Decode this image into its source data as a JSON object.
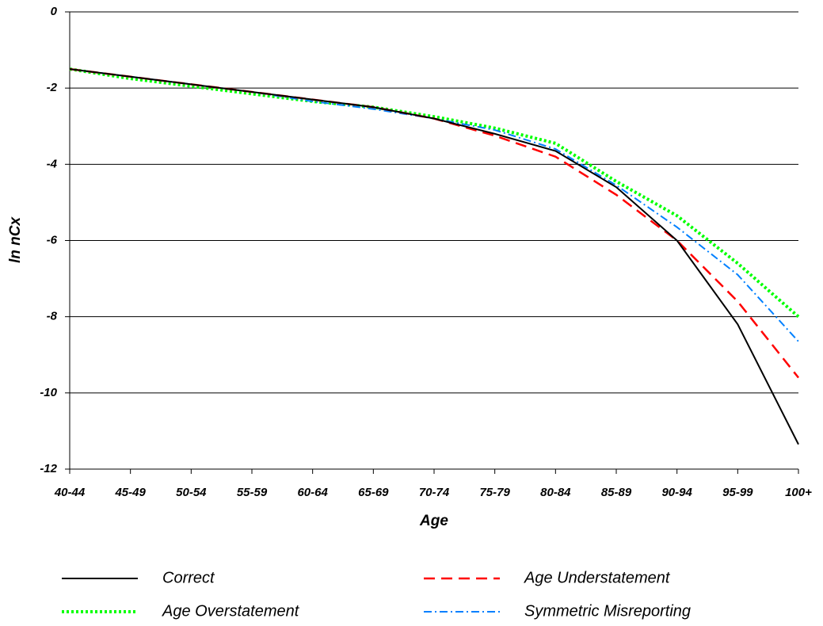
{
  "chart_data": {
    "type": "line",
    "x_label": "Age",
    "y_label": "ln nCx",
    "categories": [
      "40-44",
      "45-49",
      "50-54",
      "55-59",
      "60-64",
      "65-69",
      "70-74",
      "75-79",
      "80-84",
      "85-89",
      "90-94",
      "95-99",
      "100+"
    ],
    "ylim": [
      -12,
      0
    ],
    "yticks": [
      0,
      -2,
      -4,
      -6,
      -8,
      -10,
      -12
    ],
    "grid": true,
    "legend": "bottom",
    "series": [
      {
        "name": "Correct",
        "color": "#000000",
        "line_style": "solid",
        "values": [
          -1.5,
          -1.7,
          -1.9,
          -2.1,
          -2.3,
          -2.5,
          -2.8,
          -3.2,
          -3.65,
          -4.6,
          -6.0,
          -8.2,
          -11.35
        ]
      },
      {
        "name": "Age Understatement",
        "color": "#ff0000",
        "line_style": "dashed",
        "values": [
          -1.5,
          -1.7,
          -1.9,
          -2.1,
          -2.3,
          -2.5,
          -2.8,
          -3.25,
          -3.8,
          -4.8,
          -6.0,
          -7.6,
          -9.6
        ]
      },
      {
        "name": "Age Overstatement",
        "color": "#00ff00",
        "line_style": "dotted",
        "values": [
          -1.5,
          -1.75,
          -1.95,
          -2.15,
          -2.35,
          -2.5,
          -2.75,
          -3.05,
          -3.45,
          -4.45,
          -5.35,
          -6.6,
          -8.0
        ]
      },
      {
        "name": "Symmetric Misreporting",
        "color": "#0080ff",
        "line_style": "dashdot",
        "values": [
          -1.5,
          -1.7,
          -1.9,
          -2.1,
          -2.35,
          -2.55,
          -2.8,
          -3.1,
          -3.6,
          -4.55,
          -5.65,
          -6.9,
          -8.65
        ]
      }
    ]
  }
}
